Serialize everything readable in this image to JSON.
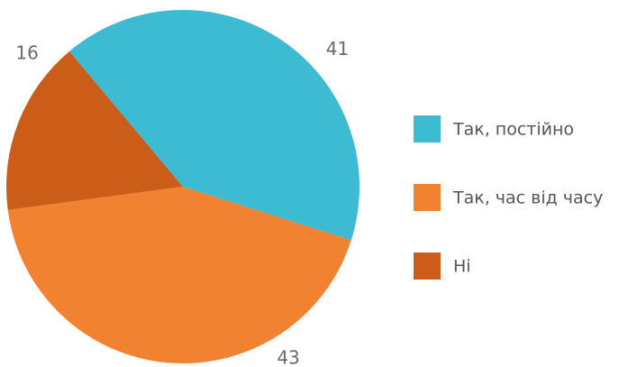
{
  "chart_data": {
    "type": "pie",
    "categories": [
      "Так, постійно",
      "Так, час від часу",
      "Ні"
    ],
    "values": [
      41,
      43,
      16
    ],
    "colors": [
      "#3dbbd3",
      "#f08232",
      "#cc5d18"
    ],
    "legend": "right"
  }
}
